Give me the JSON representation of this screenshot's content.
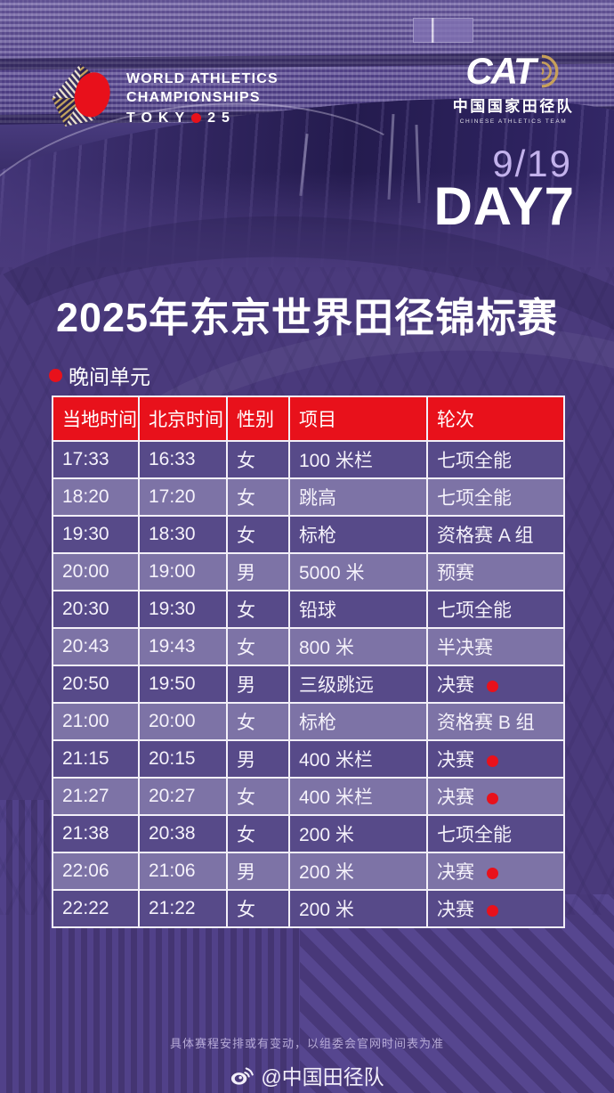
{
  "poster": {
    "date": "9/19",
    "day_label": "DAY7"
  },
  "logos": {
    "world_athletics": {
      "line1": "WORLD ATHLETICS",
      "line2": "CHAMPIONSHIPS",
      "tokyo_prefix": "TOKY",
      "tokyo_suffix": "25"
    },
    "cat": {
      "acronym": "CAT",
      "name_cn": "中国国家田径队",
      "name_en": "CHINESE ATHLETICS TEAM"
    }
  },
  "title": "2025年东京世界田径锦标赛",
  "session_label": "晚间单元",
  "schedule": {
    "columns": [
      "当地时间",
      "北京时间",
      "性别",
      "项目",
      "轮次"
    ],
    "rows": [
      {
        "local_time": "17:33",
        "beijing_time": "16:33",
        "gender": "女",
        "event": "100 米栏",
        "round": "七项全能",
        "medal": false
      },
      {
        "local_time": "18:20",
        "beijing_time": "17:20",
        "gender": "女",
        "event": "跳高",
        "round": "七项全能",
        "medal": false
      },
      {
        "local_time": "19:30",
        "beijing_time": "18:30",
        "gender": "女",
        "event": "标枪",
        "round": "资格赛 A 组",
        "medal": false
      },
      {
        "local_time": "20:00",
        "beijing_time": "19:00",
        "gender": "男",
        "event": "5000 米",
        "round": "预赛",
        "medal": false
      },
      {
        "local_time": "20:30",
        "beijing_time": "19:30",
        "gender": "女",
        "event": "铅球",
        "round": "七项全能",
        "medal": false
      },
      {
        "local_time": "20:43",
        "beijing_time": "19:43",
        "gender": "女",
        "event": "800 米",
        "round": "半决赛",
        "medal": false
      },
      {
        "local_time": "20:50",
        "beijing_time": "19:50",
        "gender": "男",
        "event": "三级跳远",
        "round": "决赛",
        "medal": true
      },
      {
        "local_time": "21:00",
        "beijing_time": "20:00",
        "gender": "女",
        "event": "标枪",
        "round": "资格赛 B 组",
        "medal": false
      },
      {
        "local_time": "21:15",
        "beijing_time": "20:15",
        "gender": "男",
        "event": "400 米栏",
        "round": "决赛",
        "medal": true
      },
      {
        "local_time": "21:27",
        "beijing_time": "20:27",
        "gender": "女",
        "event": "400 米栏",
        "round": "决赛",
        "medal": true
      },
      {
        "local_time": "21:38",
        "beijing_time": "20:38",
        "gender": "女",
        "event": "200 米",
        "round": "七项全能",
        "medal": false
      },
      {
        "local_time": "22:06",
        "beijing_time": "21:06",
        "gender": "男",
        "event": "200 米",
        "round": "决赛",
        "medal": true
      },
      {
        "local_time": "22:22",
        "beijing_time": "21:22",
        "gender": "女",
        "event": "200 米",
        "round": "决赛",
        "medal": true
      }
    ]
  },
  "footer": {
    "disclaimer": "具体赛程安排或有变动，以组委会官网时间表为准",
    "weibo_handle": "@中国田径队"
  },
  "colors": {
    "accent_red": "#e8111b",
    "row_dark": "#574a89",
    "row_light": "#7d73a6",
    "bg_purple": "#4a3a7c",
    "table_border": "#f2eff8",
    "date_lavender": "#c3b2ec",
    "logo_gold": "#c7a05a",
    "footnote_lavender": "#b6aad6"
  }
}
